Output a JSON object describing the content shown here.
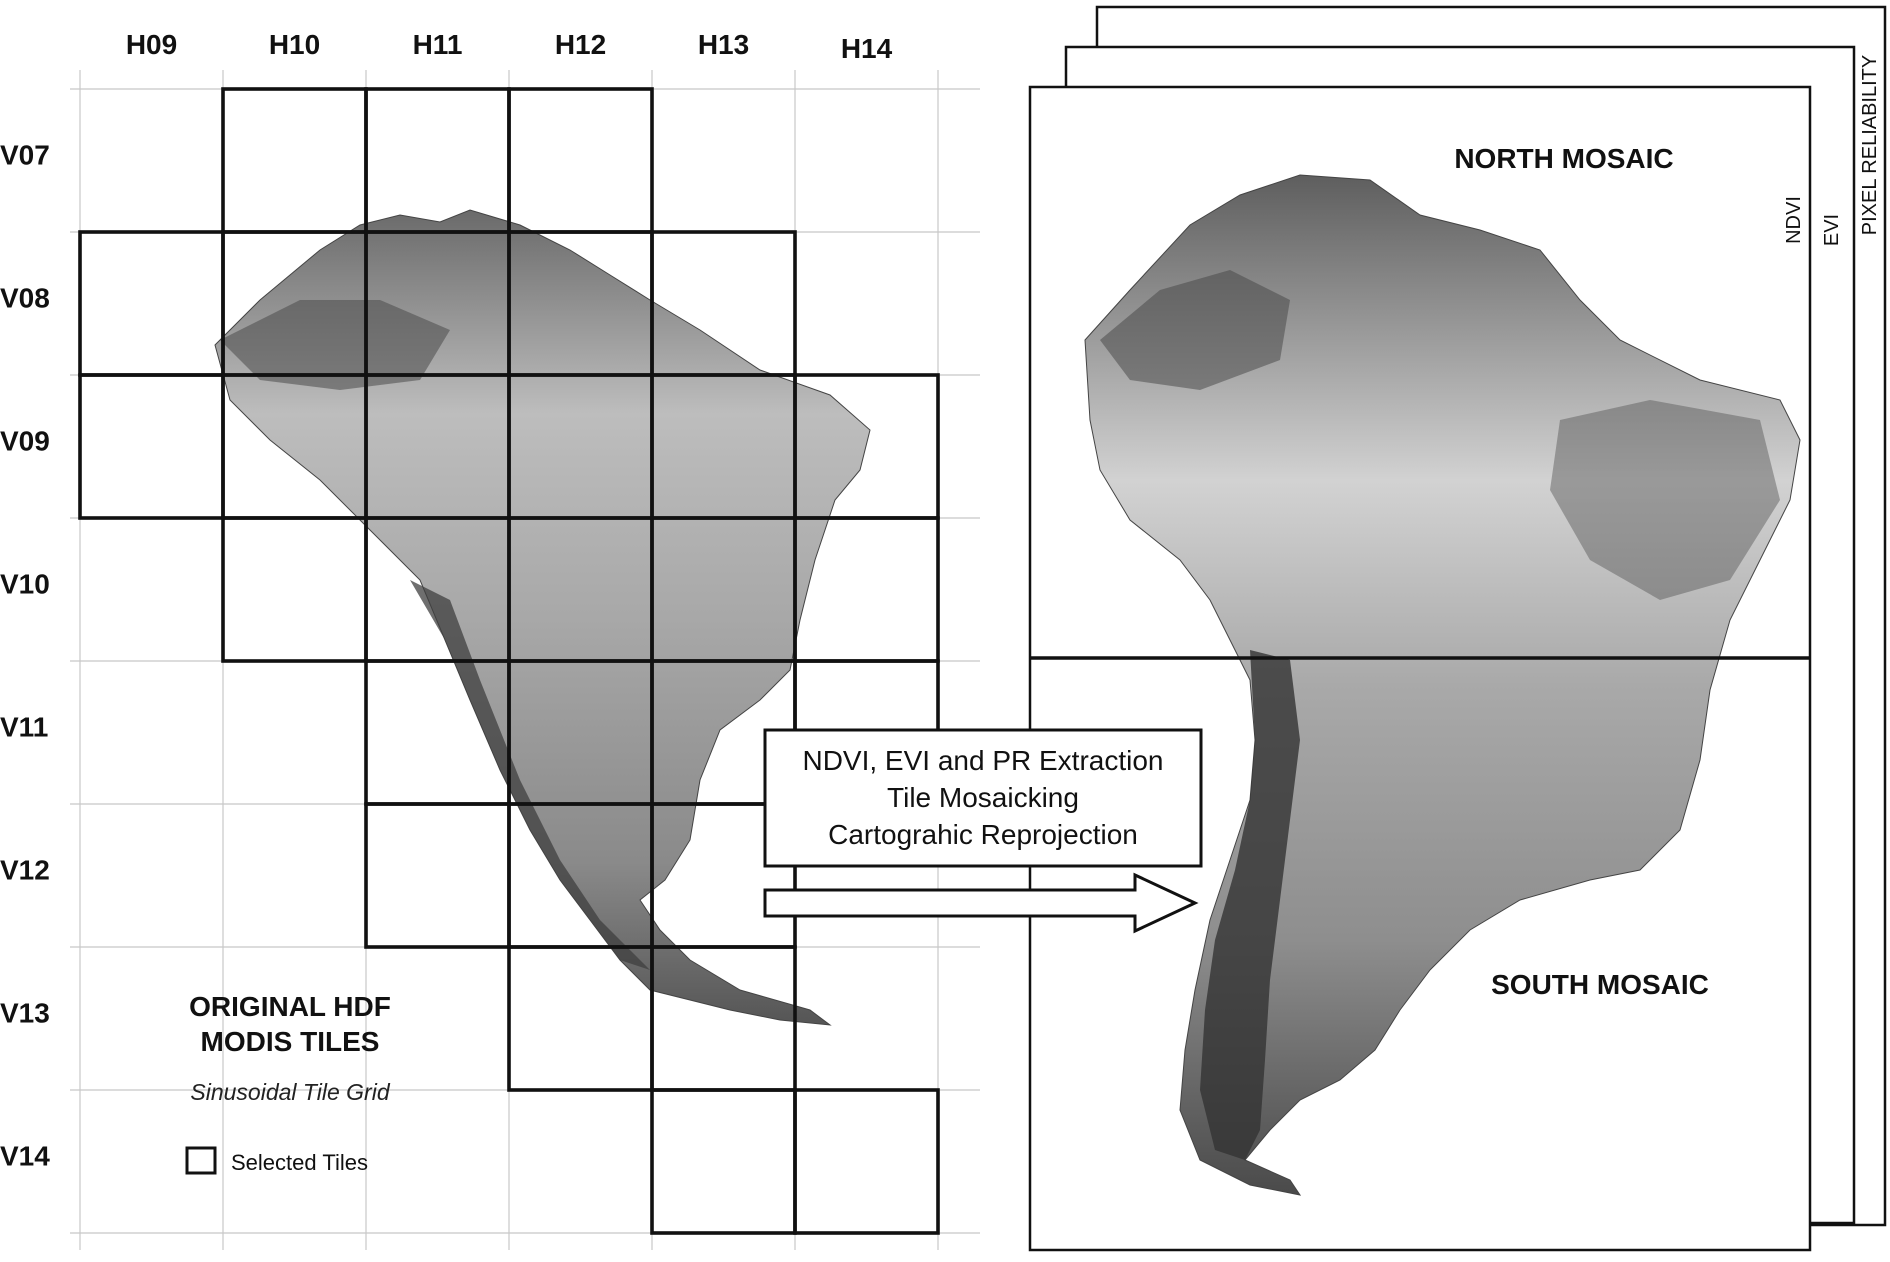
{
  "columns": [
    "H09",
    "H10",
    "H11",
    "H12",
    "H13",
    "H14"
  ],
  "rows": [
    "V07",
    "V08",
    "V09",
    "V10",
    "V11",
    "V12",
    "V13",
    "V14"
  ],
  "selected_tiles": [
    {
      "h": "H10",
      "v": "V07"
    },
    {
      "h": "H11",
      "v": "V07"
    },
    {
      "h": "H12",
      "v": "V07"
    },
    {
      "h": "H09",
      "v": "V08"
    },
    {
      "h": "H10",
      "v": "V08"
    },
    {
      "h": "H11",
      "v": "V08"
    },
    {
      "h": "H12",
      "v": "V08"
    },
    {
      "h": "H13",
      "v": "V08"
    },
    {
      "h": "H09",
      "v": "V09"
    },
    {
      "h": "H10",
      "v": "V09"
    },
    {
      "h": "H11",
      "v": "V09"
    },
    {
      "h": "H12",
      "v": "V09"
    },
    {
      "h": "H13",
      "v": "V09"
    },
    {
      "h": "H14",
      "v": "V09"
    },
    {
      "h": "H10",
      "v": "V10"
    },
    {
      "h": "H11",
      "v": "V10"
    },
    {
      "h": "H12",
      "v": "V10"
    },
    {
      "h": "H13",
      "v": "V10"
    },
    {
      "h": "H14",
      "v": "V10"
    },
    {
      "h": "H11",
      "v": "V11"
    },
    {
      "h": "H12",
      "v": "V11"
    },
    {
      "h": "H13",
      "v": "V11"
    },
    {
      "h": "H14",
      "v": "V11"
    },
    {
      "h": "H11",
      "v": "V12"
    },
    {
      "h": "H12",
      "v": "V12"
    },
    {
      "h": "H13",
      "v": "V12"
    },
    {
      "h": "H12",
      "v": "V13"
    },
    {
      "h": "H13",
      "v": "V13"
    },
    {
      "h": "H13",
      "v": "V14"
    },
    {
      "h": "H14",
      "v": "V14"
    }
  ],
  "left_title": {
    "line1": "ORIGINAL HDF",
    "line2": "MODIS TILES"
  },
  "left_subtitle": "Sinusoidal Tile Grid",
  "legend_label": "Selected Tiles",
  "process_box": {
    "line1": "NDVI, EVI and PR Extraction",
    "line2": "Tile Mosaicking",
    "line3": "Cartograhic Reprojection"
  },
  "mosaic": {
    "north_label": "NORTH MOSAIC",
    "south_label": "SOUTH MOSAIC",
    "layers": [
      "NDVI",
      "EVI",
      "PIXEL RELIABILITY"
    ]
  },
  "colors": {
    "grid": "#c8c8c8",
    "tile": "#111111",
    "land_light": "#dcdcdc",
    "land_dark": "#3a3a3a"
  }
}
